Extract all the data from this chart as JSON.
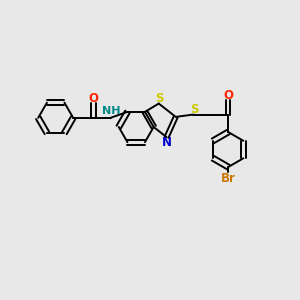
{
  "bg_color": "#e8e8e8",
  "bond_color": "#000000",
  "S_color": "#cccc00",
  "N_color": "#0000cc",
  "O_color": "#ff2200",
  "Br_color": "#cc7700",
  "NH_color": "#008888",
  "line_width": 1.4,
  "dbo": 0.055,
  "figsize": [
    3.0,
    3.0
  ],
  "dpi": 100,
  "xlim": [
    -3.2,
    3.2
  ],
  "ylim": [
    -2.8,
    2.0
  ]
}
